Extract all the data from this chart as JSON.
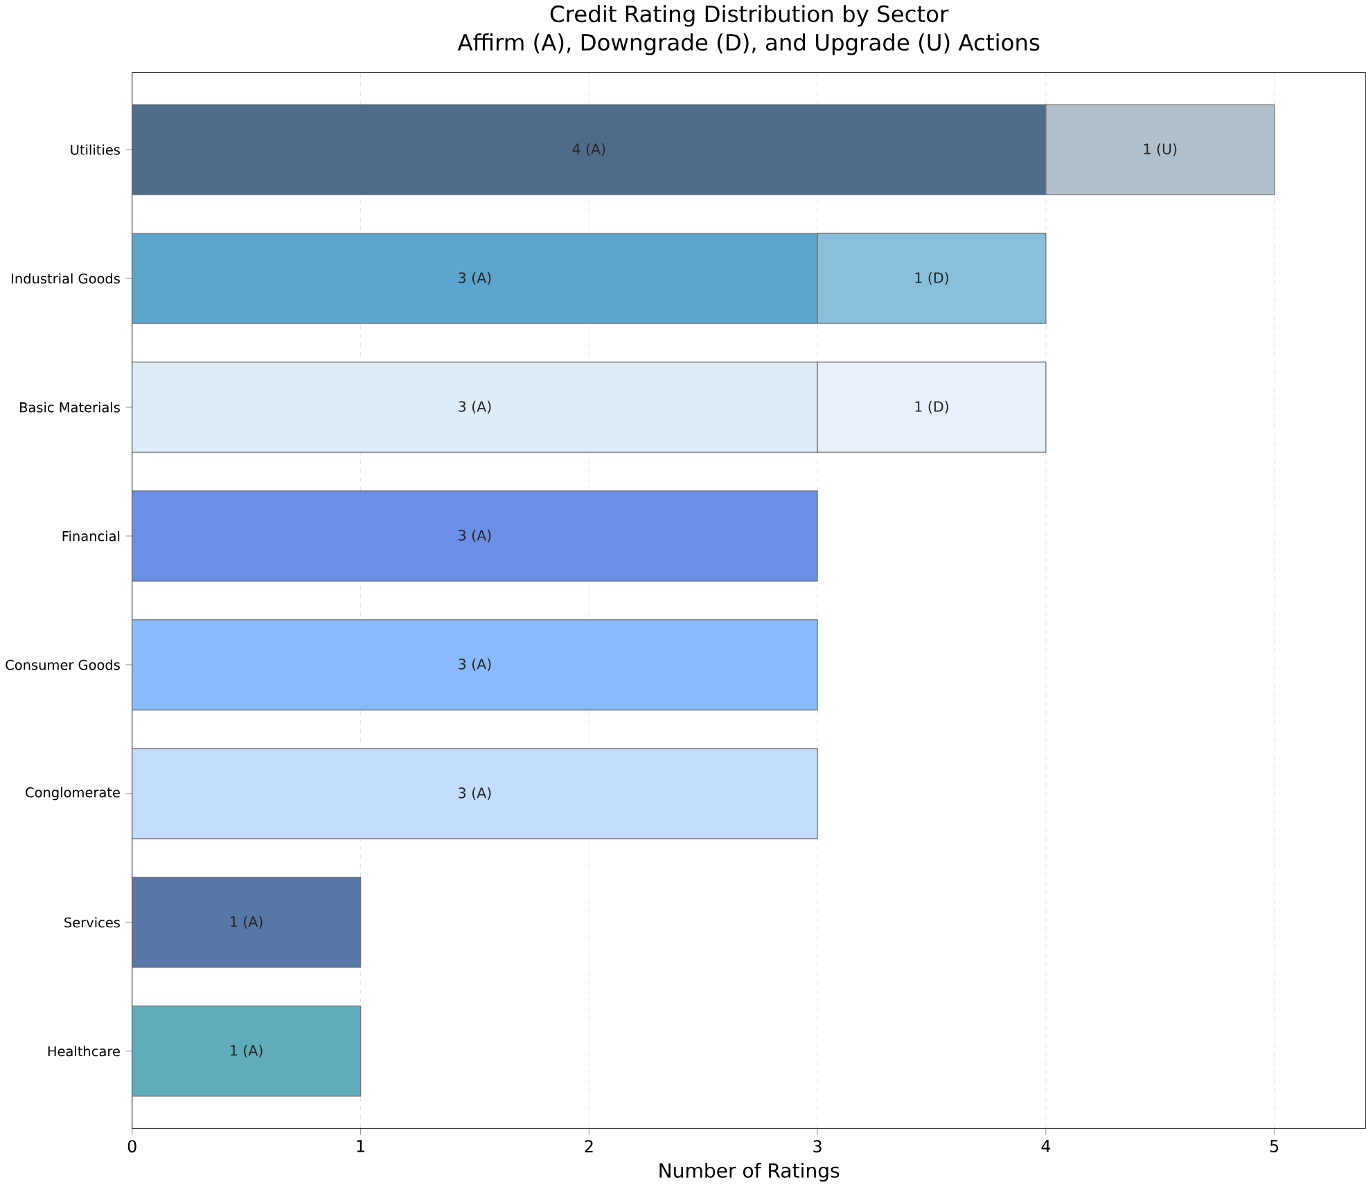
{
  "chart_data": {
    "type": "bar",
    "orientation": "horizontal",
    "stacked": true,
    "title": "Credit Rating Distribution by Sector\nAffirm (A), Downgrade (D), and Upgrade (U) Actions",
    "xlabel": "Number of Ratings",
    "categories": [
      "Utilities",
      "Industrial Goods",
      "Basic Materials",
      "Financial",
      "Consumer Goods",
      "Conglomerate",
      "Services",
      "Healthcare"
    ],
    "series": [
      {
        "values": [
          4,
          3,
          3,
          3,
          3,
          3,
          1,
          1
        ],
        "colors": [
          "#4e6b8a",
          "#5ca5cc",
          "#deecf8",
          "#6b8ee6",
          "#8ab9fd",
          "#c4dcfd",
          "#5578a6",
          "#5eacbc"
        ],
        "value_labels": [
          "4 (A)",
          "3 (A)",
          "3 (A)",
          "3 (A)",
          "3 (A)",
          "3 (A)",
          "1 (A)",
          "1 (A)"
        ]
      },
      {
        "values": [
          1,
          1,
          1,
          null,
          null,
          null,
          null,
          null
        ],
        "colors": [
          "#b0bfcc",
          "#8abfdc",
          "#e8f1fa",
          null,
          null,
          null,
          null,
          null
        ],
        "value_labels": [
          "1 (U)",
          "1 (D)",
          "1 (D)",
          null,
          null,
          null,
          null,
          null
        ]
      }
    ],
    "xlim": [
      0,
      5.4
    ],
    "xticks": [
      0,
      1,
      2,
      3,
      4,
      5
    ],
    "grid": "x"
  }
}
